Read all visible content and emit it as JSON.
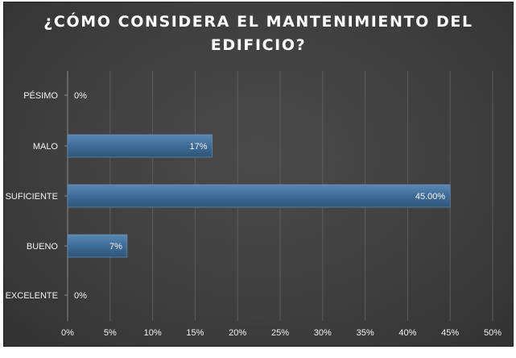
{
  "chart_data": {
    "type": "bar",
    "orientation": "horizontal",
    "title_line1": "¿CÓMO CONSIDERA EL MANTENIMIENTO DEL",
    "title_line2": "EDIFICIO?",
    "categories": [
      "PÉSIMO",
      "MALO",
      "SUFICIENTE",
      "BUENO",
      "EXCELENTE"
    ],
    "values": [
      0,
      17,
      45,
      7,
      0
    ],
    "data_labels": [
      "0%",
      "17%",
      "45.00%",
      "7%",
      "0%"
    ],
    "xlim": [
      0,
      50
    ],
    "x_ticks": [
      "0%",
      "5%",
      "10%",
      "15%",
      "20%",
      "25%",
      "30%",
      "35%",
      "40%",
      "45%",
      "50%"
    ],
    "grid": "vertical",
    "bar_color": "#3f6c96",
    "background": "#404040"
  }
}
